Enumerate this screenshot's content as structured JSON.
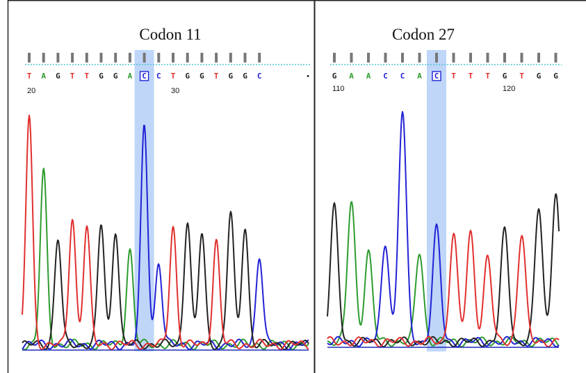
{
  "colors": {
    "A": "#2e9b2e",
    "C": "#2222d6",
    "G": "#222222",
    "T": "#e0302e",
    "highlight": "#a9c8f5",
    "dotted_line": "#4ac6d6",
    "tick": "#777777"
  },
  "chart_data": [
    {
      "type": "line",
      "title": "Codon 11",
      "sequence": [
        "T",
        "A",
        "G",
        "T",
        "T",
        "G",
        "G",
        "A",
        "C",
        "C",
        "T",
        "G",
        "G",
        "T",
        "G",
        "G",
        "C"
      ],
      "trailing_marker": "•",
      "highlighted_index": 8,
      "position_labels": [
        {
          "index": 0,
          "label": "20"
        },
        {
          "index": 10,
          "label": "30"
        }
      ],
      "peaks": [
        {
          "base": "T",
          "x": 0,
          "y": 0.97
        },
        {
          "base": "A",
          "x": 1,
          "y": 0.73
        },
        {
          "base": "G",
          "x": 2,
          "y": 0.45
        },
        {
          "base": "T",
          "x": 3,
          "y": 0.54
        },
        {
          "base": "T",
          "x": 4,
          "y": 0.5
        },
        {
          "base": "G",
          "x": 5,
          "y": 0.51
        },
        {
          "base": "G",
          "x": 6,
          "y": 0.49
        },
        {
          "base": "A",
          "x": 7,
          "y": 0.4
        },
        {
          "base": "C",
          "x": 8,
          "y": 0.93
        },
        {
          "base": "C",
          "x": 9,
          "y": 0.35
        },
        {
          "base": "T",
          "x": 10,
          "y": 0.5
        },
        {
          "base": "G",
          "x": 11,
          "y": 0.53
        },
        {
          "base": "G",
          "x": 12,
          "y": 0.47
        },
        {
          "base": "T",
          "x": 13,
          "y": 0.44
        },
        {
          "base": "G",
          "x": 14,
          "y": 0.56
        },
        {
          "base": "G",
          "x": 15,
          "y": 0.5
        },
        {
          "base": "C",
          "x": 16,
          "y": 0.38
        }
      ]
    },
    {
      "type": "line",
      "title": "Codon 27",
      "sequence": [
        "G",
        "A",
        "A",
        "C",
        "C",
        "A",
        "C",
        "T",
        "T",
        "T",
        "G",
        "T",
        "G",
        "G"
      ],
      "highlighted_index": 6,
      "position_labels": [
        {
          "index": 0,
          "label": "110"
        },
        {
          "index": 10,
          "label": "120"
        }
      ],
      "peaks": [
        {
          "base": "G",
          "x": 0,
          "y": 0.58
        },
        {
          "base": "A",
          "x": 1,
          "y": 0.61
        },
        {
          "base": "A",
          "x": 2,
          "y": 0.39
        },
        {
          "base": "C",
          "x": 3,
          "y": 0.43
        },
        {
          "base": "C",
          "x": 4,
          "y": 1.0
        },
        {
          "base": "A",
          "x": 5,
          "y": 0.39
        },
        {
          "base": "C",
          "x": 6,
          "y": 0.49
        },
        {
          "base": "T",
          "x": 7,
          "y": 0.47
        },
        {
          "base": "T",
          "x": 8,
          "y": 0.47
        },
        {
          "base": "T",
          "x": 9,
          "y": 0.37
        },
        {
          "base": "G",
          "x": 10,
          "y": 0.48
        },
        {
          "base": "T",
          "x": 11,
          "y": 0.47
        },
        {
          "base": "G",
          "x": 12,
          "y": 0.58
        },
        {
          "base": "G",
          "x": 13,
          "y": 0.65
        }
      ]
    }
  ]
}
